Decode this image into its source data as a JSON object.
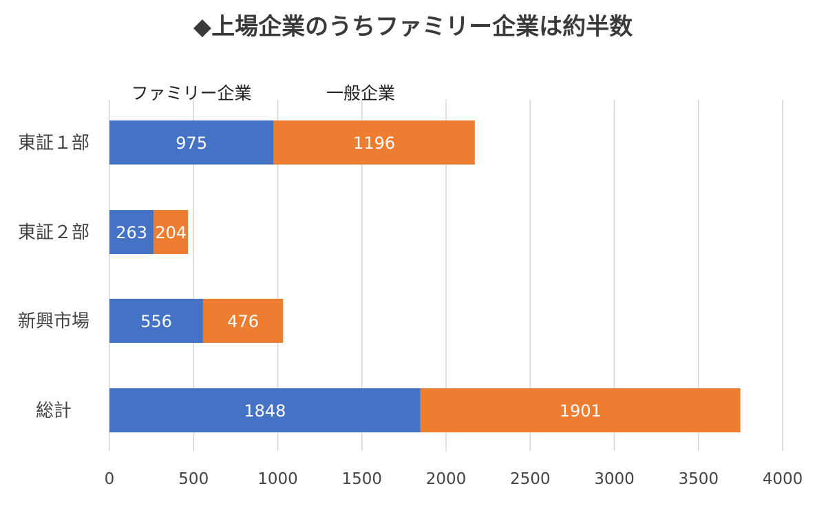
{
  "chart_data": {
    "type": "bar",
    "orientation": "horizontal",
    "stacked": true,
    "title": "◆上場企業のうちファミリー企業は約半数",
    "categories": [
      "東証１部",
      "東証２部",
      "新興市場",
      "総計"
    ],
    "series": [
      {
        "name": "ファミリー企業",
        "color": "#4472C4",
        "values": [
          975,
          263,
          556,
          1848
        ]
      },
      {
        "name": "一般企業",
        "color": "#ED7D31",
        "values": [
          1196,
          204,
          476,
          1901
        ]
      }
    ],
    "xlim": [
      0,
      4000
    ],
    "x_ticks": [
      0,
      500,
      1000,
      1500,
      2000,
      2500,
      3000,
      3500,
      4000
    ],
    "grid": "vertical",
    "legend_position": "top",
    "data_labels": true
  }
}
